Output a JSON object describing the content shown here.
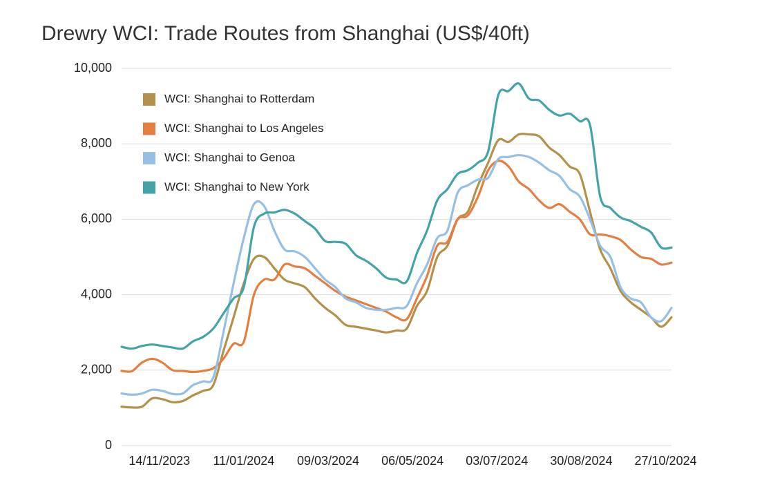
{
  "chart_data": {
    "type": "line",
    "title": "Drewry WCI: Trade Routes from Shanghai (US$/40ft)",
    "x": [
      "19/10/2023",
      "26/10/2023",
      "02/11/2023",
      "09/11/2023",
      "16/11/2023",
      "23/11/2023",
      "30/11/2023",
      "07/12/2023",
      "14/12/2023",
      "21/12/2023",
      "28/12/2023",
      "04/01/2024",
      "11/01/2024",
      "18/01/2024",
      "25/01/2024",
      "01/02/2024",
      "08/02/2024",
      "15/02/2024",
      "22/02/2024",
      "29/02/2024",
      "07/03/2024",
      "14/03/2024",
      "21/03/2024",
      "28/03/2024",
      "04/04/2024",
      "11/04/2024",
      "18/04/2024",
      "25/04/2024",
      "02/05/2024",
      "09/05/2024",
      "16/05/2024",
      "23/05/2024",
      "30/05/2024",
      "06/06/2024",
      "13/06/2024",
      "20/06/2024",
      "27/06/2024",
      "04/07/2024",
      "11/07/2024",
      "18/07/2024",
      "25/07/2024",
      "01/08/2024",
      "08/08/2024",
      "15/08/2024",
      "22/08/2024",
      "29/08/2024",
      "05/09/2024",
      "12/09/2024",
      "19/09/2024",
      "26/09/2024",
      "03/10/2024",
      "10/10/2024",
      "17/10/2024",
      "24/10/2024",
      "31/10/2024"
    ],
    "xlim": [
      "19/10/2023",
      "31/10/2024"
    ],
    "xticks": [
      "14/11/2023",
      "11/01/2024",
      "09/03/2024",
      "06/05/2024",
      "03/07/2024",
      "30/08/2024",
      "27/10/2024"
    ],
    "ylim": [
      0,
      10000
    ],
    "yticks": [
      0,
      {
        "value": 2000,
        "label": "2,000"
      },
      {
        "value": 4000,
        "label": "4,000"
      },
      {
        "value": 6000,
        "label": "6,000"
      },
      {
        "value": 8000,
        "label": "8,000"
      },
      {
        "value": 10000,
        "label": "10,000"
      }
    ],
    "grid": true,
    "legend": "upper left",
    "series": [
      {
        "name": "WCI: Shanghai to Rotterdam",
        "color": "#b3914a",
        "values": [
          1030,
          1010,
          1030,
          1250,
          1230,
          1150,
          1180,
          1330,
          1450,
          1600,
          2500,
          3400,
          4300,
          4950,
          5000,
          4700,
          4400,
          4300,
          4200,
          3900,
          3650,
          3450,
          3200,
          3150,
          3100,
          3050,
          3000,
          3050,
          3100,
          3700,
          4100,
          5000,
          5300,
          6000,
          6200,
          6900,
          7500,
          8100,
          8050,
          8250,
          8250,
          8200,
          7900,
          7700,
          7400,
          7200,
          6200,
          5200,
          4700,
          4100,
          3800,
          3600,
          3400,
          3150,
          3400
        ]
      },
      {
        "name": "WCI: Shanghai to Los Angeles",
        "color": "#e47f42",
        "values": [
          1980,
          1970,
          2200,
          2300,
          2200,
          2000,
          1980,
          1950,
          1980,
          2050,
          2300,
          2700,
          2750,
          4000,
          4400,
          4400,
          4800,
          4750,
          4700,
          4500,
          4300,
          4100,
          3950,
          3850,
          3750,
          3650,
          3550,
          3400,
          3350,
          3900,
          4500,
          5300,
          5400,
          6000,
          6100,
          6600,
          7300,
          7550,
          7400,
          7000,
          6800,
          6500,
          6300,
          6400,
          6200,
          6000,
          5600,
          5600,
          5550,
          5450,
          5200,
          5000,
          4950,
          4800,
          4850
        ]
      },
      {
        "name": "WCI: Shanghai to Genoa",
        "color": "#96bfe3",
        "values": [
          1380,
          1350,
          1380,
          1480,
          1450,
          1370,
          1380,
          1600,
          1700,
          1800,
          3000,
          4300,
          5500,
          6400,
          6350,
          5700,
          5200,
          5150,
          5000,
          4700,
          4400,
          4200,
          3900,
          3800,
          3650,
          3600,
          3600,
          3650,
          3700,
          4300,
          4800,
          5500,
          5700,
          6700,
          6900,
          7050,
          7100,
          7600,
          7650,
          7700,
          7650,
          7500,
          7300,
          7150,
          6800,
          6600,
          6000,
          5300,
          5000,
          4200,
          3900,
          3800,
          3400,
          3300,
          3650
        ]
      },
      {
        "name": "WCI: Shanghai to New York",
        "color": "#43a3a6",
        "values": [
          2620,
          2570,
          2640,
          2680,
          2640,
          2600,
          2570,
          2760,
          2880,
          3100,
          3500,
          3900,
          4200,
          5800,
          6150,
          6180,
          6250,
          6150,
          5950,
          5750,
          5420,
          5400,
          5350,
          5050,
          4900,
          4700,
          4450,
          4400,
          4350,
          5100,
          5700,
          6500,
          6800,
          7200,
          7300,
          7500,
          7800,
          9300,
          9400,
          9600,
          9200,
          9150,
          8900,
          8750,
          8800,
          8600,
          8500,
          6600,
          6300,
          6050,
          5950,
          5800,
          5650,
          5250,
          5250
        ]
      }
    ]
  }
}
